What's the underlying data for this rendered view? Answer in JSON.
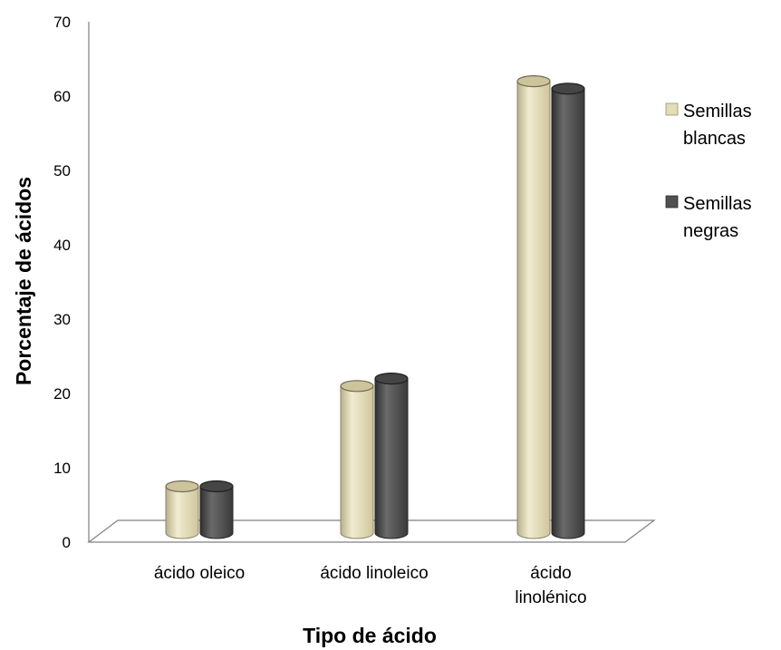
{
  "chart_data": {
    "type": "bar",
    "style": "3d-cylinder",
    "title": "",
    "xlabel": "Tipo de ácido",
    "ylabel": "Porcentaje de ácidos",
    "ylim": [
      0,
      70
    ],
    "yticks": [
      "0",
      "10",
      "20",
      "30",
      "40",
      "50",
      "60",
      "70"
    ],
    "categories": [
      {
        "lines": [
          "ácido oleico"
        ]
      },
      {
        "lines": [
          "ácido linoleico"
        ]
      },
      {
        "lines": [
          "ácido",
          "linolénico"
        ]
      }
    ],
    "series": [
      {
        "name_lines": [
          "Semillas",
          "blancas"
        ],
        "color": "#e3dcb4",
        "values": [
          7.5,
          21,
          62
        ]
      },
      {
        "name_lines": [
          "Semillas",
          "negras"
        ],
        "color": "#505050",
        "values": [
          7.5,
          22,
          61
        ]
      }
    ],
    "legend_position": "right",
    "grid": false
  }
}
